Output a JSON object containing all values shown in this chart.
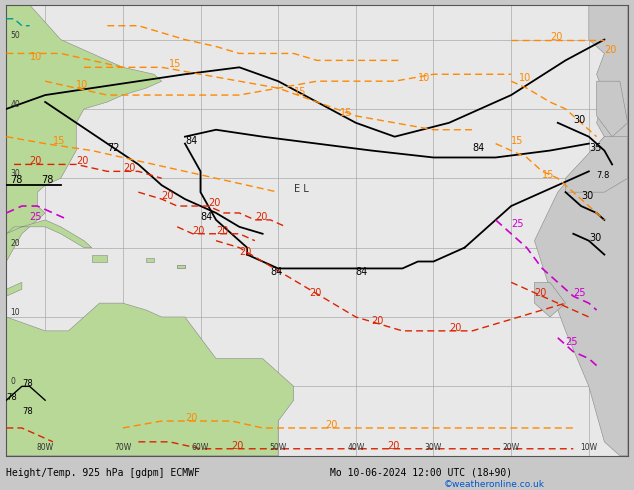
{
  "title_left": "Height/Temp. 925 hPa [gdpm] ECMWF",
  "title_right": "Mo 10-06-2024 12:00 UTC (18+90)",
  "copyright": "©weatheronline.co.uk",
  "bg_color": "#e8e8e8",
  "fig_bg_color": "#c8c8c8",
  "land_green": "#b8d898",
  "land_gray": "#c8c8c8",
  "grid_color": "#aaaaaa",
  "bk": "#000000",
  "oc": "#ff8800",
  "rc": "#dd2200",
  "mc": "#cc00cc",
  "tc": "#009999",
  "xlim": [
    -85,
    -5
  ],
  "ylim": [
    -10,
    55
  ],
  "xticks": [
    -80,
    -70,
    -60,
    -50,
    -40,
    -30,
    -20,
    -10
  ],
  "yticks": [
    0,
    10,
    20,
    30,
    40,
    50
  ],
  "xlabels": [
    "80W",
    "70W",
    "60W",
    "50W",
    "40W",
    "30W",
    "20W",
    "10W"
  ],
  "ylabels": [
    "0",
    "10",
    "20",
    "30",
    "40",
    "50"
  ]
}
